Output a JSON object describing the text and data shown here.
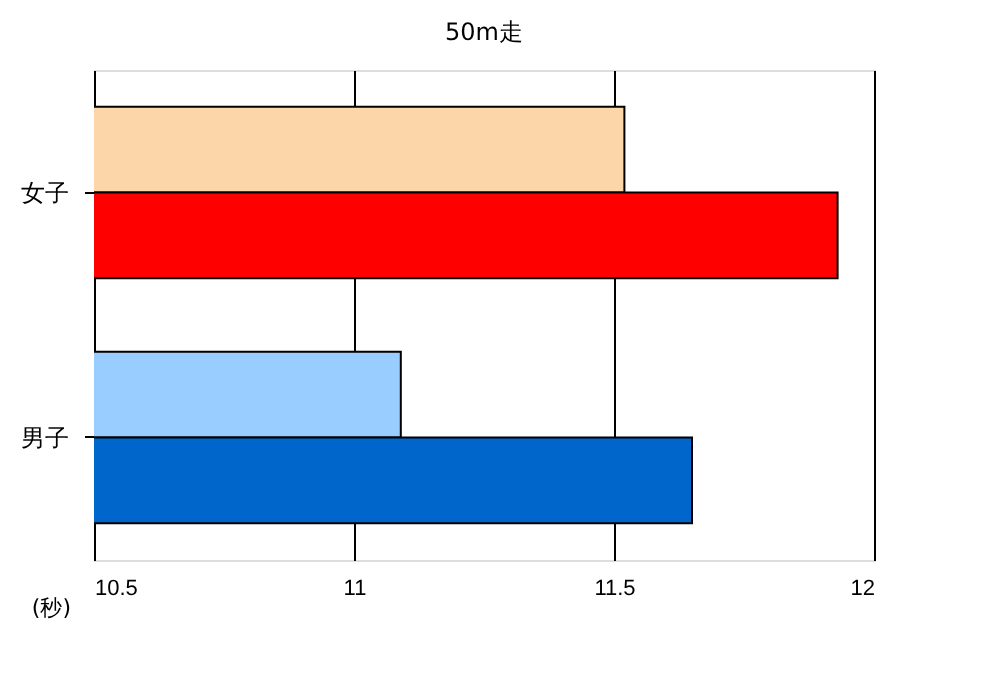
{
  "chart_data": {
    "type": "bar",
    "orientation": "horizontal",
    "title": "50m走",
    "xlabel": "(秒)",
    "categories": [
      "女子",
      "男子"
    ],
    "series": [
      {
        "colors": [
          "#fcd5a8",
          "#99ccff"
        ],
        "values": [
          11.52,
          11.09
        ]
      },
      {
        "colors": [
          "#ff0000",
          "#0066cc"
        ],
        "values": [
          11.93,
          11.65
        ]
      }
    ],
    "xlim": [
      10.5,
      12
    ],
    "xticks": [
      10.5,
      11,
      11.5,
      12
    ],
    "grid": "x"
  }
}
